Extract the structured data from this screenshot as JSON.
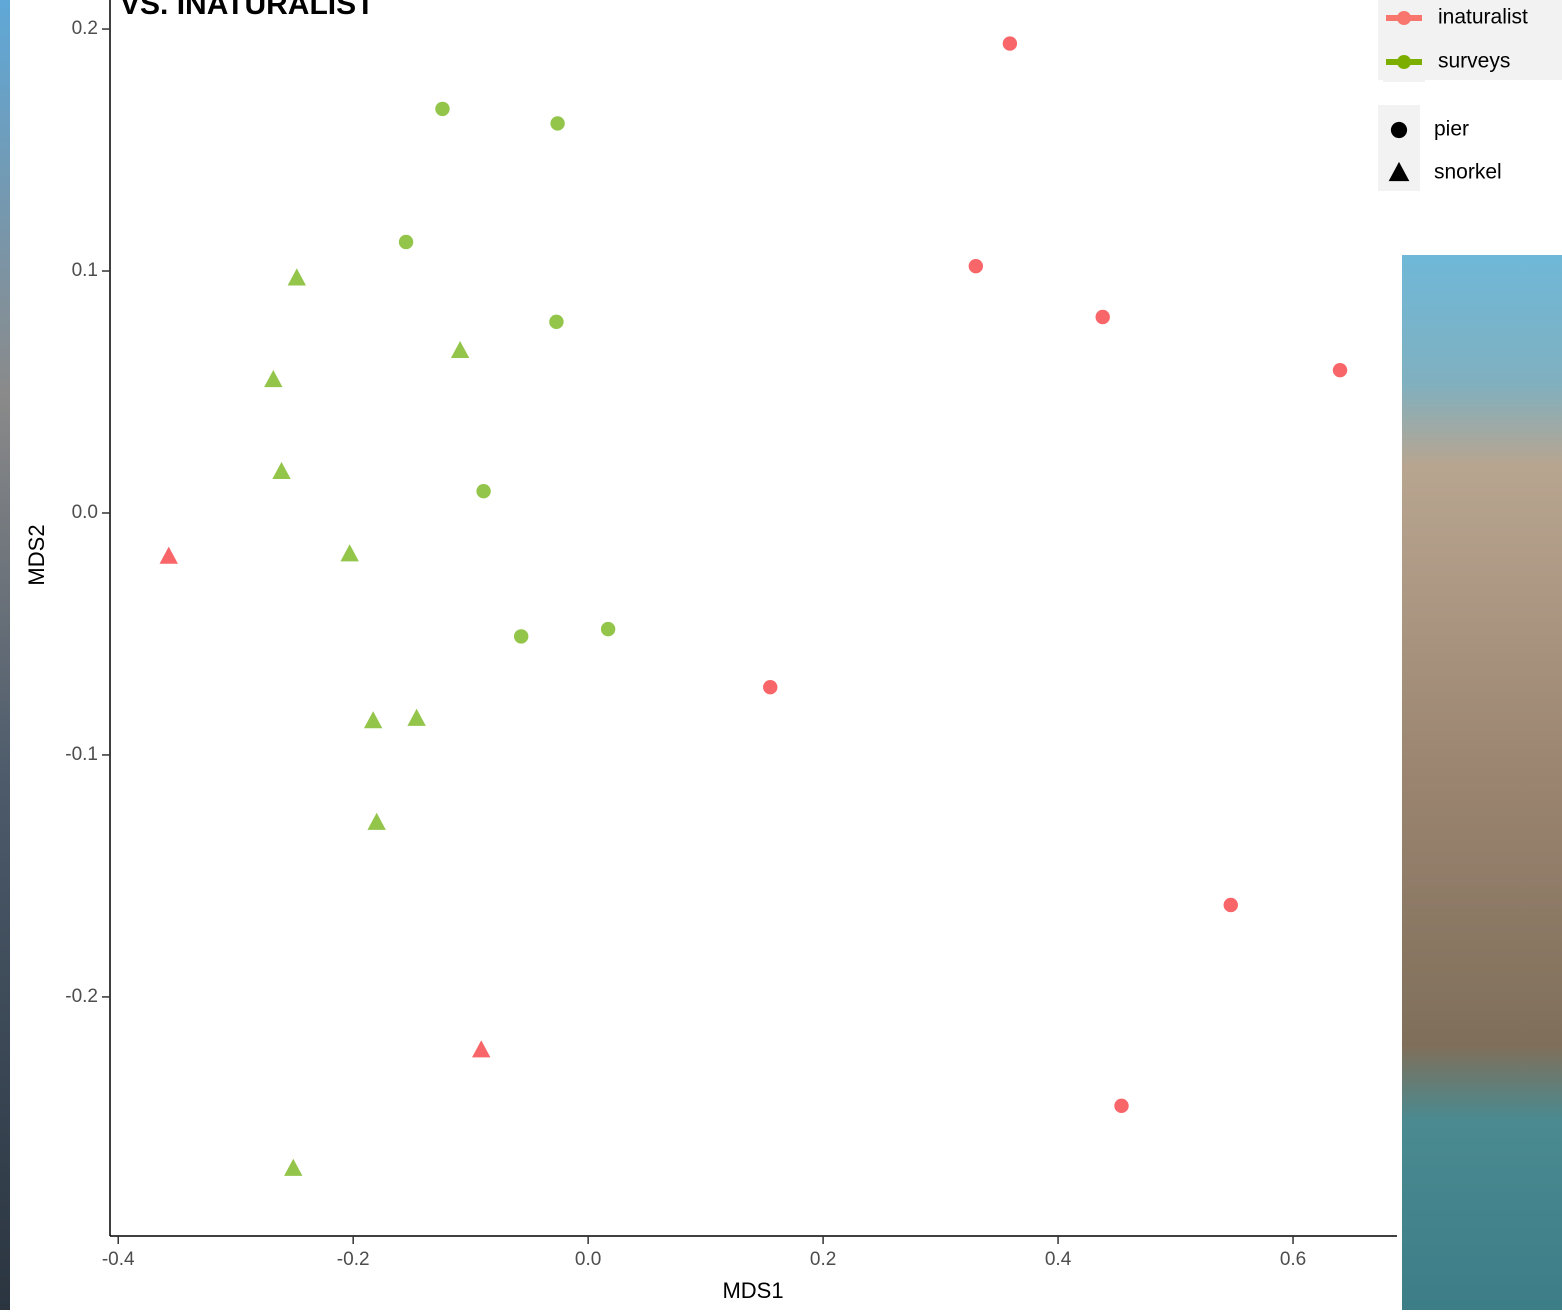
{
  "chart_data": {
    "type": "scatter",
    "title": "VS. INATURALIST",
    "x_label": "MDS1",
    "y_label": "MDS2",
    "xlim": [
      -0.407,
      0.6885
    ],
    "ylim": [
      -0.2988,
      0.212
    ],
    "xticks": [
      -0.4,
      -0.2,
      {
        "value": 0,
        "label": "0.0"
      },
      0.2,
      0.4,
      0.6
    ],
    "yticks": [
      -0.2,
      -0.1,
      {
        "value": 0,
        "label": "0.0"
      },
      0.1,
      0.2
    ],
    "grid": false,
    "legend_position": "top-right",
    "color_legend": [
      {
        "name": "inaturalist",
        "color": "#f8766d"
      },
      {
        "name": "surveys",
        "color": "#7cae00"
      }
    ],
    "shape_legend": [
      {
        "name": "pier",
        "shape": "circle"
      },
      {
        "name": "snorkel",
        "shape": "triangle"
      }
    ],
    "series": [
      {
        "color": "#f8666a",
        "shape": "circle",
        "x": [
          0.359,
          0.33,
          0.438,
          0.64,
          0.155,
          0.547,
          0.454
        ],
        "values": [
          0.194,
          0.102,
          0.081,
          0.059,
          -0.072,
          -0.162,
          -0.245
        ]
      },
      {
        "color": "#f8666a",
        "shape": "triangle",
        "x": [
          -0.357,
          -0.091
        ],
        "values": [
          -0.018,
          -0.222
        ]
      },
      {
        "color": "#93c54b",
        "shape": "circle",
        "x": [
          -0.124,
          -0.026,
          -0.155,
          -0.027,
          -0.089,
          -0.057,
          0.017
        ],
        "values": [
          0.167,
          0.161,
          0.112,
          0.079,
          0.009,
          -0.051,
          -0.048
        ]
      },
      {
        "color": "#93c54b",
        "shape": "triangle",
        "x": [
          -0.248,
          -0.109,
          -0.268,
          -0.261,
          -0.203,
          -0.183,
          -0.146,
          -0.18,
          -0.251
        ],
        "values": [
          0.097,
          0.067,
          0.055,
          0.017,
          -0.017,
          -0.086,
          -0.085,
          -0.128,
          -0.271
        ]
      }
    ]
  }
}
